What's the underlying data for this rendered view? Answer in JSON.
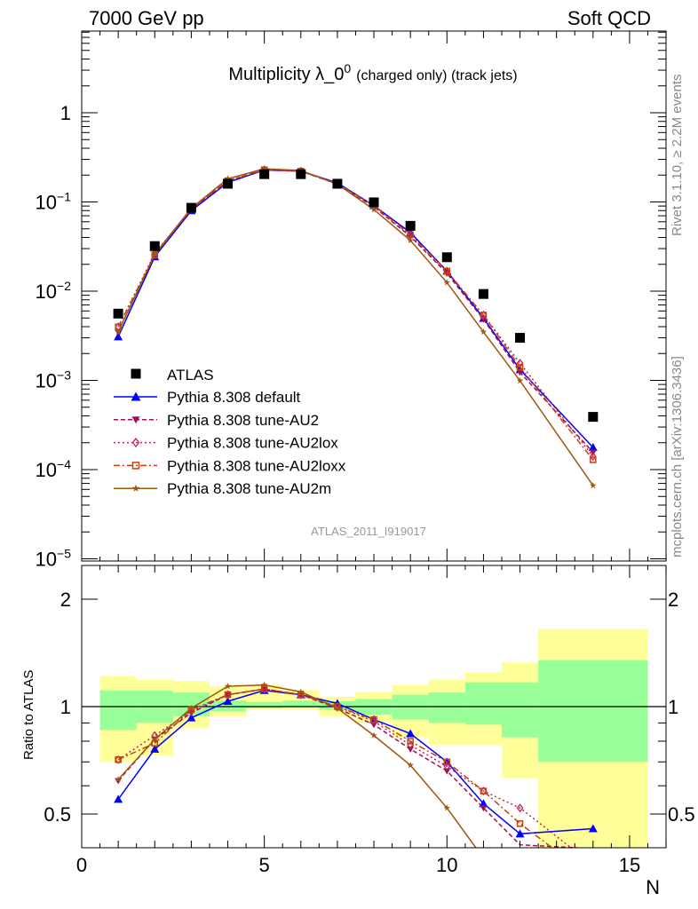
{
  "header": {
    "left": "7000 GeV pp",
    "right": "Soft QCD"
  },
  "side_text": {
    "rivet": "Rivet 3.1.10, ≥ 2.2M events",
    "mcplots": "mcplots.cern.ch [arXiv:1306.3436]"
  },
  "chart_data": {
    "type": "line",
    "title": {
      "main": "Multiplicity λ_0",
      "sup": "0",
      "small": "(charged only) (track jets)"
    },
    "analysis_label": "ATLAS_2011_I919017",
    "xlabel": "N",
    "ylabel_ratio": "Ratio to ATLAS",
    "xlim": [
      0,
      16
    ],
    "ylim_top": [
      1e-05,
      7.5
    ],
    "ylim_ratio": [
      0.4,
      2.49
    ],
    "yscale": "log",
    "x_ticks": [
      "0",
      "5",
      "10",
      "15"
    ],
    "top_y_ticks": [
      {
        "base": "1",
        "exp": ""
      },
      {
        "base": "10",
        "exp": "−1"
      },
      {
        "base": "10",
        "exp": "−2"
      },
      {
        "base": "10",
        "exp": "−3"
      },
      {
        "base": "10",
        "exp": "−4"
      },
      {
        "base": "10",
        "exp": "−5"
      }
    ],
    "ratio_y_ticks": [
      "0.5",
      "1",
      "2"
    ],
    "legend_placement": "lower-left",
    "x": [
      1,
      2,
      3,
      4,
      5,
      6,
      7,
      8,
      9,
      10,
      11,
      12,
      14
    ],
    "data": {
      "name": "ATLAS",
      "color": "#000000",
      "values": [
        0.0056,
        0.032,
        0.086,
        0.16,
        0.205,
        0.205,
        0.16,
        0.099,
        0.054,
        0.024,
        0.0093,
        0.003,
        0.00039
      ]
    },
    "band_edges": [
      0.5,
      1.5,
      2.5,
      3.5,
      4.5,
      5.5,
      6.5,
      7.5,
      8.5,
      9.5,
      10.5,
      11.5,
      12.5,
      15.5
    ],
    "band_total": {
      "color": "#ffff99",
      "low": [
        0.7,
        0.73,
        0.87,
        0.94,
        0.98,
        0.98,
        0.94,
        0.9,
        0.82,
        0.78,
        0.78,
        0.63,
        0.4
      ],
      "high": [
        1.22,
        1.19,
        1.18,
        1.14,
        1.15,
        1.11,
        1.065,
        1.1,
        1.15,
        1.19,
        1.25,
        1.33,
        1.65
      ]
    },
    "band_stat": {
      "color": "#99ff99",
      "low": [
        0.86,
        0.9,
        0.94,
        0.97,
        0.99,
        0.995,
        0.98,
        0.95,
        0.92,
        0.9,
        0.89,
        0.82,
        0.7
      ],
      "high": [
        1.11,
        1.11,
        1.095,
        1.04,
        1.03,
        1.04,
        1.035,
        1.05,
        1.08,
        1.095,
        1.17,
        1.17,
        1.35
      ]
    },
    "series": [
      {
        "name": "Pythia 8.308 default",
        "color": "#0000ff",
        "dash": "",
        "marker": "triangle-up",
        "ratio": [
          0.55,
          0.76,
          0.93,
          1.035,
          1.11,
          1.08,
          1.02,
          0.92,
          0.84,
          0.7,
          0.535,
          0.44,
          0.455
        ]
      },
      {
        "name": "Pythia 8.308 tune-AU2",
        "color": "#a01050",
        "dash": "5,3",
        "marker": "triangle-down",
        "ratio": [
          0.62,
          0.81,
          0.96,
          1.08,
          1.12,
          1.08,
          0.99,
          0.89,
          0.76,
          0.66,
          0.52,
          0.41,
          0.4
        ]
      },
      {
        "name": "Pythia 8.308 tune-AU2lox",
        "color": "#c02060",
        "dash": "2,3",
        "marker": "diamond-open",
        "ratio": [
          0.71,
          0.83,
          0.97,
          1.08,
          1.12,
          1.08,
          1.0,
          0.91,
          0.78,
          0.68,
          0.58,
          0.52,
          0.36
        ]
      },
      {
        "name": "Pythia 8.308 tune-AU2loxx",
        "color": "#c84010",
        "dash": "7,3,2,3",
        "marker": "square-open",
        "ratio": [
          0.71,
          0.79,
          0.98,
          1.08,
          1.12,
          1.08,
          1.0,
          0.92,
          0.8,
          0.7,
          0.58,
          0.47,
          0.33
        ]
      },
      {
        "name": "Pythia 8.308 tune-AU2m",
        "color": "#a0560f",
        "dash": "",
        "marker": "star",
        "ratio": [
          0.625,
          0.81,
          0.99,
          1.14,
          1.15,
          1.1,
          0.99,
          0.83,
          0.685,
          0.52,
          0.376,
          0.33,
          0.17
        ]
      }
    ]
  }
}
